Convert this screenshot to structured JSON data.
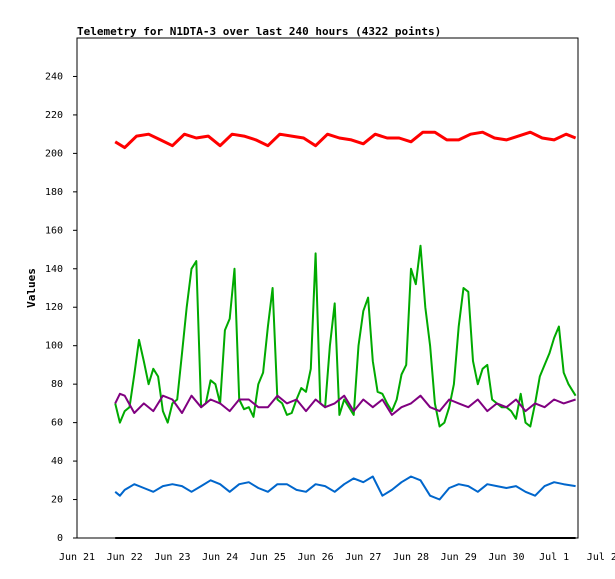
{
  "chart_data": {
    "type": "line",
    "title": "Telemetry for N1DTA-3 over last 240 hours (4322 points)",
    "xlabel": "",
    "ylabel": "Values",
    "ylim": [
      0,
      260
    ],
    "xlim_days": [
      21,
      31.5
    ],
    "grid": false,
    "legend": "none",
    "yticks": [
      0,
      20,
      40,
      60,
      80,
      100,
      120,
      140,
      160,
      180,
      200,
      220,
      240
    ],
    "xticks": [
      {
        "label": "Jun 21",
        "day": 21
      },
      {
        "label": "Jun 22",
        "day": 22
      },
      {
        "label": "Jun 23",
        "day": 23
      },
      {
        "label": "Jun 24",
        "day": 24
      },
      {
        "label": "Jun 25",
        "day": 25
      },
      {
        "label": "Jun 26",
        "day": 26
      },
      {
        "label": "Jun 27",
        "day": 27
      },
      {
        "label": "Jun 28",
        "day": 28
      },
      {
        "label": "Jun 29",
        "day": 29
      },
      {
        "label": "Jun 30",
        "day": 30
      },
      {
        "label": "Jul 1",
        "day": 31
      },
      {
        "label": "Jul 2",
        "day": 32
      }
    ],
    "series": [
      {
        "color": "#ff0000",
        "x": [
          21.8,
          22.0,
          22.25,
          22.5,
          22.75,
          23.0,
          23.25,
          23.5,
          23.75,
          24.0,
          24.25,
          24.5,
          24.75,
          25.0,
          25.25,
          25.5,
          25.75,
          26.0,
          26.25,
          26.5,
          26.75,
          27.0,
          27.25,
          27.5,
          27.75,
          28.0,
          28.25,
          28.5,
          28.75,
          29.0,
          29.25,
          29.5,
          29.75,
          30.0,
          30.25,
          30.5,
          30.75,
          31.0,
          31.25,
          31.45
        ],
        "y": [
          206,
          203,
          209,
          210,
          207,
          204,
          210,
          208,
          209,
          204,
          210,
          209,
          207,
          204,
          210,
          209,
          208,
          204,
          210,
          208,
          207,
          205,
          210,
          208,
          208,
          206,
          211,
          211,
          207,
          207,
          210,
          211,
          208,
          207,
          209,
          211,
          208,
          207,
          210,
          208
        ]
      },
      {
        "color": "#00aa00",
        "x": [
          21.8,
          21.9,
          22.0,
          22.1,
          22.2,
          22.3,
          22.4,
          22.5,
          22.6,
          22.7,
          22.8,
          22.9,
          23.0,
          23.1,
          23.2,
          23.3,
          23.4,
          23.5,
          23.6,
          23.7,
          23.8,
          23.9,
          24.0,
          24.1,
          24.2,
          24.3,
          24.4,
          24.5,
          24.6,
          24.7,
          24.8,
          24.9,
          25.0,
          25.1,
          25.2,
          25.3,
          25.4,
          25.5,
          25.6,
          25.7,
          25.8,
          25.9,
          26.0,
          26.1,
          26.2,
          26.3,
          26.4,
          26.5,
          26.6,
          26.7,
          26.8,
          26.9,
          27.0,
          27.1,
          27.2,
          27.3,
          27.4,
          27.5,
          27.6,
          27.7,
          27.8,
          27.9,
          28.0,
          28.1,
          28.2,
          28.3,
          28.4,
          28.5,
          28.6,
          28.7,
          28.8,
          28.9,
          29.0,
          29.1,
          29.2,
          29.3,
          29.4,
          29.5,
          29.6,
          29.7,
          29.8,
          29.9,
          30.0,
          30.1,
          30.2,
          30.3,
          30.4,
          30.5,
          30.6,
          30.7,
          30.8,
          30.9,
          31.0,
          31.1,
          31.2,
          31.3,
          31.4,
          31.45
        ],
        "y": [
          70,
          60,
          66,
          68,
          85,
          103,
          92,
          80,
          88,
          84,
          66,
          60,
          70,
          72,
          96,
          120,
          140,
          144,
          68,
          70,
          82,
          80,
          70,
          108,
          114,
          140,
          72,
          67,
          68,
          63,
          80,
          86,
          110,
          130,
          72,
          70,
          64,
          65,
          72,
          78,
          76,
          88,
          148,
          70,
          68,
          100,
          122,
          64,
          72,
          68,
          64,
          100,
          118,
          125,
          92,
          76,
          75,
          70,
          66,
          72,
          85,
          90,
          140,
          132,
          152,
          120,
          100,
          70,
          58,
          60,
          68,
          80,
          110,
          130,
          128,
          92,
          80,
          88,
          90,
          72,
          70,
          68,
          68,
          66,
          62,
          75,
          60,
          58,
          70,
          84,
          90,
          96,
          104,
          110,
          86,
          80,
          76,
          74
        ]
      },
      {
        "color": "#800080",
        "x": [
          21.8,
          21.9,
          22.0,
          22.2,
          22.4,
          22.6,
          22.8,
          23.0,
          23.2,
          23.4,
          23.6,
          23.8,
          24.0,
          24.2,
          24.4,
          24.6,
          24.8,
          25.0,
          25.2,
          25.4,
          25.6,
          25.8,
          26.0,
          26.2,
          26.4,
          26.6,
          26.8,
          27.0,
          27.2,
          27.4,
          27.6,
          27.8,
          28.0,
          28.2,
          28.4,
          28.6,
          28.8,
          29.0,
          29.2,
          29.4,
          29.6,
          29.8,
          30.0,
          30.2,
          30.4,
          30.6,
          30.8,
          31.0,
          31.2,
          31.45
        ],
        "y": [
          70,
          75,
          74,
          65,
          70,
          66,
          74,
          72,
          65,
          74,
          68,
          72,
          70,
          66,
          72,
          72,
          68,
          68,
          74,
          70,
          72,
          66,
          72,
          68,
          70,
          74,
          66,
          72,
          68,
          72,
          64,
          68,
          70,
          74,
          68,
          66,
          72,
          70,
          68,
          72,
          66,
          70,
          68,
          72,
          66,
          70,
          68,
          72,
          70,
          72
        ]
      },
      {
        "color": "#0066cc",
        "x": [
          21.8,
          21.9,
          22.0,
          22.2,
          22.4,
          22.6,
          22.8,
          23.0,
          23.2,
          23.4,
          23.6,
          23.8,
          24.0,
          24.2,
          24.4,
          24.6,
          24.8,
          25.0,
          25.2,
          25.4,
          25.6,
          25.8,
          26.0,
          26.2,
          26.4,
          26.6,
          26.8,
          27.0,
          27.2,
          27.4,
          27.6,
          27.8,
          28.0,
          28.2,
          28.4,
          28.6,
          28.8,
          29.0,
          29.2,
          29.4,
          29.6,
          29.8,
          30.0,
          30.2,
          30.4,
          30.6,
          30.8,
          31.0,
          31.2,
          31.45
        ],
        "y": [
          24,
          22,
          25,
          28,
          26,
          24,
          27,
          28,
          27,
          24,
          27,
          30,
          28,
          24,
          28,
          29,
          26,
          24,
          28,
          28,
          25,
          24,
          28,
          27,
          24,
          28,
          31,
          29,
          32,
          22,
          25,
          29,
          32,
          30,
          22,
          20,
          26,
          28,
          27,
          24,
          28,
          27,
          26,
          27,
          24,
          22,
          27,
          29,
          28,
          27
        ]
      },
      {
        "color": "#000000",
        "x": [
          21.8,
          31.45
        ],
        "y": [
          0,
          0
        ]
      }
    ]
  }
}
